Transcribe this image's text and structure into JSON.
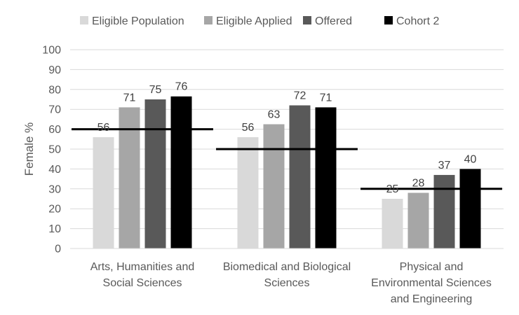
{
  "chart_data": {
    "type": "bar",
    "title": "",
    "xlabel": "",
    "ylabel": "Female %",
    "ylim": [
      0,
      100
    ],
    "yticks": [
      0,
      10,
      20,
      30,
      40,
      50,
      60,
      70,
      80,
      90,
      100
    ],
    "grid": true,
    "legend_position": "top",
    "categories": [
      [
        "Arts, Humanities and",
        "Social Sciences"
      ],
      [
        "Biomedical and Biological",
        "Sciences"
      ],
      [
        "Physical and",
        "Environmental Sciences",
        "and Engineering"
      ]
    ],
    "series": [
      {
        "name": "Eligible Population",
        "color": "#d9d9d9",
        "values": [
          56,
          56,
          25
        ],
        "labels": [
          "56",
          "56",
          "25"
        ]
      },
      {
        "name": "Eligible Applied",
        "color": "#a6a6a6",
        "values": [
          71,
          62.5,
          28
        ],
        "labels": [
          "71",
          "63",
          "28"
        ]
      },
      {
        "name": "Offered",
        "color": "#595959",
        "values": [
          75,
          72,
          37
        ],
        "labels": [
          "75",
          "72",
          "37"
        ]
      },
      {
        "name": "Cohort 2",
        "color": "#000000",
        "values": [
          76.5,
          71,
          40
        ],
        "labels": [
          "76",
          "71",
          "40"
        ]
      }
    ],
    "reference_lines": [
      60,
      50,
      30
    ]
  }
}
